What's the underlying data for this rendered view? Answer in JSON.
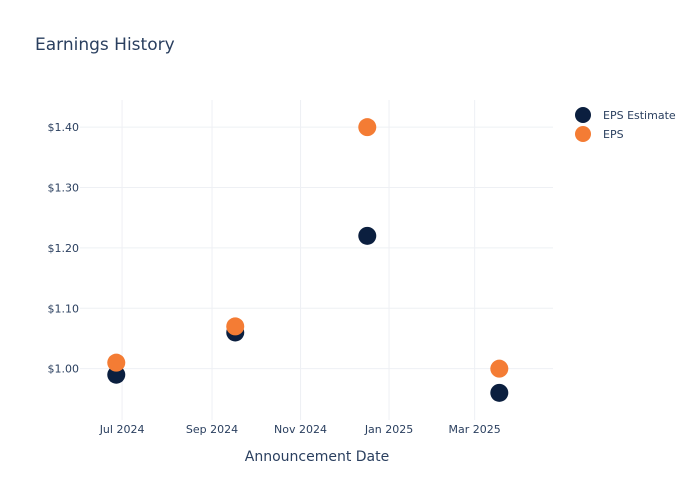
{
  "chart_data": {
    "type": "scatter",
    "title": "Earnings History",
    "xlabel": "Announcement Date",
    "ylabel": "",
    "x_ticks": [
      "Jul 2024",
      "Sep 2024",
      "Nov 2024",
      "Jan 2025",
      "Mar 2025"
    ],
    "y_ticks": [
      "$1.00",
      "$1.10",
      "$1.20",
      "$1.30",
      "$1.40"
    ],
    "ylim": [
      0.915,
      1.445
    ],
    "xlim": [
      "2024-06-02",
      "2025-04-24"
    ],
    "grid": true,
    "legend_position": "top-right",
    "series": [
      {
        "name": "EPS Estimate",
        "color": "#0b1f3f",
        "points": [
          {
            "x": "2024-06-27",
            "y": 0.99
          },
          {
            "x": "2024-09-17",
            "y": 1.06
          },
          {
            "x": "2024-12-17",
            "y": 1.22
          },
          {
            "x": "2025-03-18",
            "y": 0.96
          }
        ]
      },
      {
        "name": "EPS",
        "color": "#f47c34",
        "points": [
          {
            "x": "2024-06-27",
            "y": 1.01
          },
          {
            "x": "2024-09-17",
            "y": 1.07
          },
          {
            "x": "2024-12-17",
            "y": 1.4
          },
          {
            "x": "2025-03-18",
            "y": 1.0
          }
        ]
      }
    ]
  }
}
